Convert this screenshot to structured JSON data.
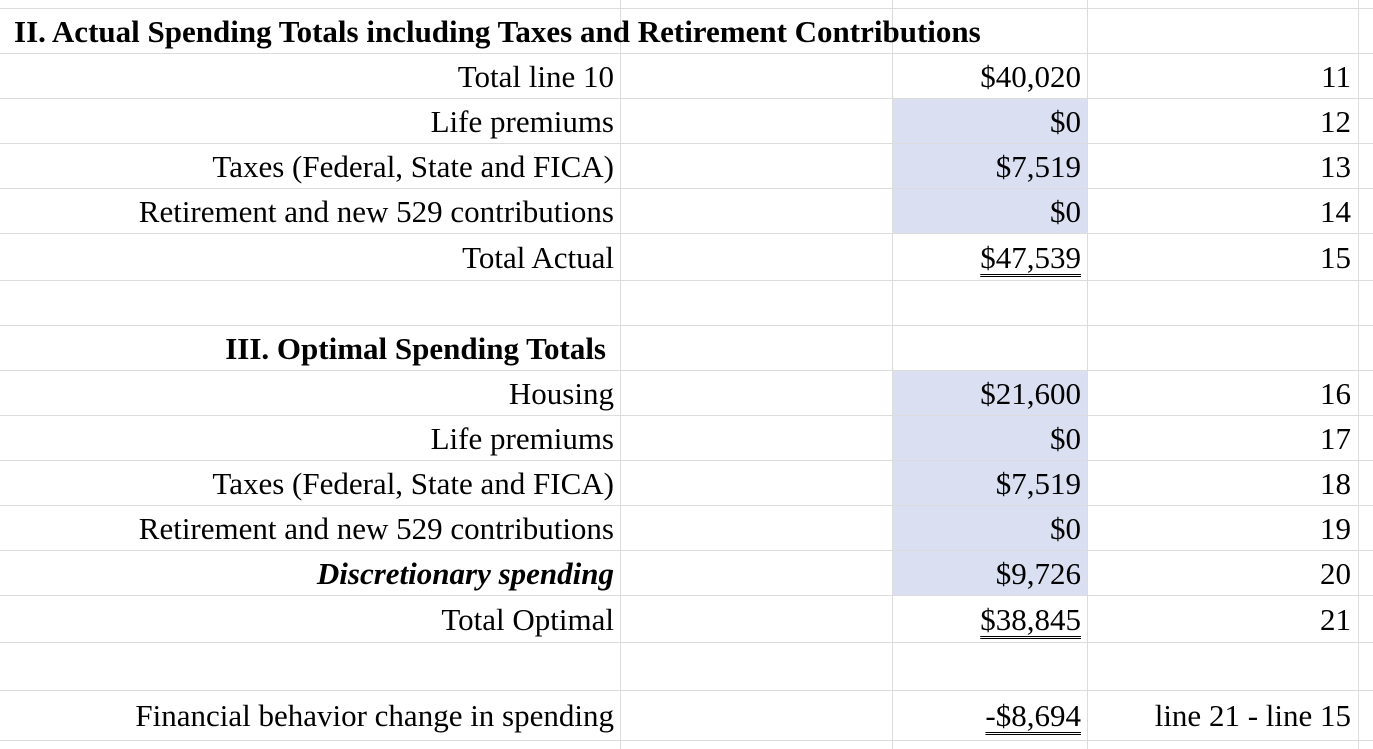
{
  "sections": [
    {
      "title": "II. Actual Spending Totals including Taxes and Retirement Contributions",
      "rows": [
        {
          "label": "Total line 10",
          "amount": "$40,020",
          "line": 11
        },
        {
          "label": "Life premiums",
          "amount": "$0",
          "line": 12
        },
        {
          "label": "Taxes (Federal, State and FICA)",
          "amount": "$7,519",
          "line": 13
        },
        {
          "label": "Retirement and new 529 contributions",
          "amount": "$0",
          "line": 14
        },
        {
          "label": "Total Actual",
          "amount": "$47,539",
          "line": 15
        }
      ]
    },
    {
      "title": "III. Optimal Spending Totals",
      "rows": [
        {
          "label": "Housing",
          "amount": "$21,600",
          "line": 16
        },
        {
          "label": "Life premiums",
          "amount": "$0",
          "line": 17
        },
        {
          "label": "Taxes (Federal, State and FICA)",
          "amount": "$7,519",
          "line": 18
        },
        {
          "label": "Retirement and new 529 contributions",
          "amount": "$0",
          "line": 19
        },
        {
          "label": "Discretionary spending",
          "amount": "$9,726",
          "line": 20
        },
        {
          "label": "Total  Optimal",
          "amount": "$38,845",
          "line": 21
        }
      ]
    }
  ],
  "summary": {
    "label": "Financial behavior change in spending",
    "amount": "-$8,694",
    "note": "line 21 - line 15"
  }
}
